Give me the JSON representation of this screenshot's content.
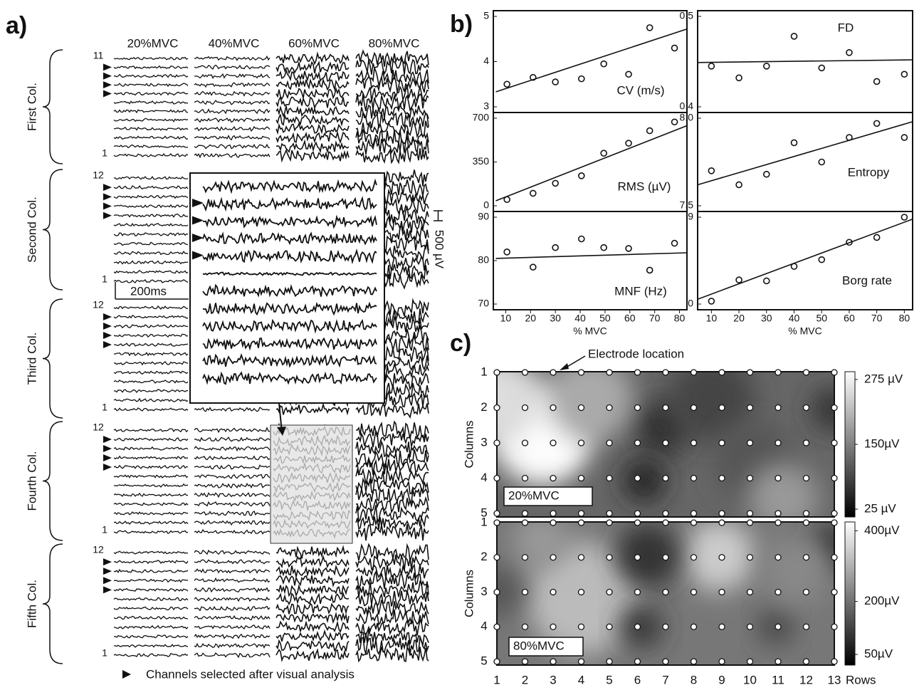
{
  "panel_labels": [
    "a)",
    "b)",
    "c)"
  ],
  "panel_a": {
    "levels": [
      "20%MVC",
      "40%MVC",
      "60%MVC",
      "80%MVC"
    ],
    "groups": [
      {
        "label": "First Col.",
        "top": "11",
        "bottom": "1"
      },
      {
        "label": "Second Col.",
        "top": "12",
        "bottom": "1"
      },
      {
        "label": "Third Col.",
        "top": "12",
        "bottom": "1"
      },
      {
        "label": "Fourth Col.",
        "top": "12",
        "bottom": "1"
      },
      {
        "label": "Fifth Col.",
        "top": "12",
        "bottom": "1"
      }
    ],
    "time_scale": "200ms",
    "amp_scale": "500 µV",
    "legend": "Channels selected after visual analysis"
  },
  "chart_data": [
    {
      "type": "scatter",
      "label": "CV (m/s)",
      "x": [
        10.5,
        21,
        30,
        40.5,
        49.5,
        59.5,
        68,
        78
      ],
      "values": [
        3.5,
        3.65,
        3.55,
        3.62,
        3.95,
        3.72,
        4.75,
        4.3
      ],
      "xlim": [
        5,
        83
      ],
      "ylim": [
        3,
        5
      ],
      "yticks": [
        3,
        4,
        5
      ],
      "fit": {
        "x": [
          6,
          83
        ],
        "y": [
          3.33,
          4.72
        ]
      }
    },
    {
      "type": "scatter",
      "label": "FD",
      "x": [
        10,
        20,
        30,
        40,
        50,
        60,
        70,
        80
      ],
      "values": [
        0.445,
        0.432,
        0.445,
        0.478,
        0.443,
        0.46,
        0.428,
        0.436
      ],
      "xlim": [
        5,
        83
      ],
      "ylim": [
        0.4,
        0.5
      ],
      "yticks": [
        0.4,
        0.5
      ],
      "fit": {
        "x": [
          5,
          83
        ],
        "y": [
          0.449,
          0.452
        ]
      }
    },
    {
      "type": "scatter",
      "label": "RMS (µV)",
      "x": [
        10.5,
        21,
        30,
        40.5,
        49.5,
        59.5,
        68,
        78
      ],
      "values": [
        50,
        100,
        180,
        240,
        420,
        500,
        600,
        670
      ],
      "xlim": [
        5,
        83
      ],
      "ylim": [
        0,
        700
      ],
      "yticks": [
        0,
        350,
        700
      ],
      "fit": {
        "x": [
          6,
          83
        ],
        "y": [
          40,
          640
        ]
      }
    },
    {
      "type": "scatter",
      "label": "Entropy",
      "x": [
        10,
        20,
        30,
        40,
        50,
        60,
        70,
        80
      ],
      "values": [
        7.7,
        7.62,
        7.68,
        7.86,
        7.75,
        7.89,
        7.97,
        7.89
      ],
      "xlim": [
        5,
        83
      ],
      "ylim": [
        7.5,
        8.0
      ],
      "yticks": [
        7.5,
        {
          "value": 8,
          "label": "8.0"
        }
      ],
      "fit": {
        "x": [
          5,
          83
        ],
        "y": [
          7.62,
          7.98
        ]
      }
    },
    {
      "type": "scatter",
      "label": "MNF (Hz)",
      "x": [
        10.5,
        21,
        30,
        40.5,
        49.5,
        59.5,
        68,
        78
      ],
      "values": [
        82,
        78.5,
        83,
        85,
        83,
        82.8,
        77.8,
        84
      ],
      "xlim": [
        5,
        83
      ],
      "ylim": [
        70,
        90
      ],
      "yticks": [
        70,
        80,
        90
      ],
      "xticks": [
        10,
        20,
        30,
        40,
        50,
        60,
        70,
        80
      ],
      "xlabel": "% MVC",
      "fit": {
        "x": [
          6,
          83
        ],
        "y": [
          80.5,
          81.8
        ]
      }
    },
    {
      "type": "scatter",
      "label": "Borg rate",
      "x": [
        10,
        20,
        30,
        40,
        50,
        60,
        70,
        80
      ],
      "values": [
        0.3,
        2.5,
        2.4,
        3.9,
        4.6,
        6.4,
        6.9,
        9
      ],
      "xlim": [
        5,
        83
      ],
      "ylim": [
        0,
        9
      ],
      "yticks": [
        0,
        9
      ],
      "xticks": [
        10,
        20,
        30,
        40,
        50,
        60,
        70,
        80
      ],
      "xlabel": "% MVC",
      "fit": {
        "x": [
          5,
          83
        ],
        "y": [
          0.5,
          8.8
        ]
      }
    }
  ],
  "panel_c": {
    "annotation": "Electrode location",
    "y_label": "Columns",
    "x_label": "Rows",
    "xticks": [
      1,
      2,
      3,
      4,
      5,
      6,
      7,
      8,
      9,
      10,
      11,
      12,
      13
    ],
    "yticks": [
      1,
      2,
      3,
      4,
      5
    ],
    "maps": [
      {
        "label": "20%MVC",
        "clim": [
          10,
          290
        ],
        "colorbar_ticks": [
          {
            "value": 275,
            "label": "275 µV"
          },
          {
            "value": 150,
            "label": "150µV"
          },
          {
            "value": 25,
            "label": "25 µV"
          }
        ]
      },
      {
        "label": "80%MVC",
        "clim": [
          20,
          425
        ],
        "colorbar_ticks": [
          {
            "value": 400,
            "label": "400µV"
          },
          {
            "value": 200,
            "label": "200µV"
          },
          {
            "value": 50,
            "label": "50µV"
          }
        ]
      }
    ]
  }
}
